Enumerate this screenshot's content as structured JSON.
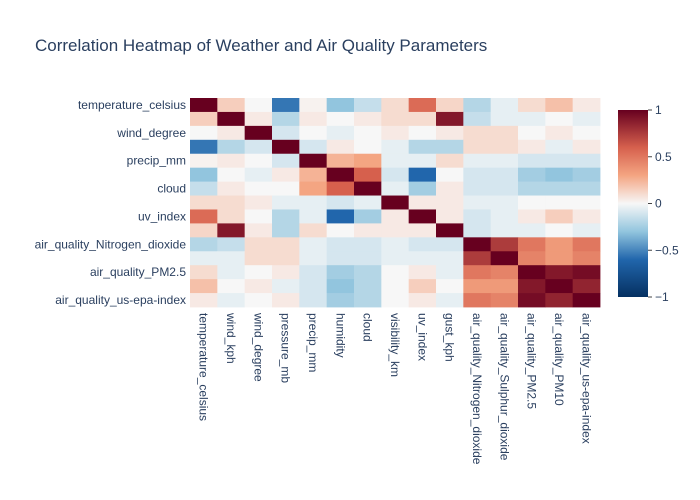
{
  "chart_data": {
    "type": "heatmap",
    "title": "Correlation Heatmap of Weather and Air Quality Parameters",
    "xlabel": "",
    "ylabel": "",
    "variables": [
      "temperature_celsius",
      "wind_kph",
      "wind_degree",
      "pressure_mb",
      "precip_mm",
      "humidity",
      "cloud",
      "visibility_km",
      "uv_index",
      "gust_kph",
      "air_quality_Nitrogen_dioxide",
      "air_quality_Sulphur_dioxide",
      "air_quality_PM2.5",
      "air_quality_PM10",
      "air_quality_us-epa-index"
    ],
    "x_tick_labels": [
      "temperature_celsius",
      "wind_kph",
      "wind_degree",
      "pressure_mb",
      "precip_mm",
      "humidity",
      "cloud",
      "visibility_km",
      "uv_index",
      "gust_kph",
      "air_quality_Nitrogen_dioxide",
      "air_quality_Sulphur_dioxide",
      "air_quality_PM2.5",
      "air_quality_PM10",
      "air_quality_us-epa-index"
    ],
    "y_tick_labels": [
      "temperature_celsius",
      "wind_degree",
      "precip_mm",
      "cloud",
      "uv_index",
      "air_quality_Nitrogen_dioxide",
      "air_quality_PM2.5",
      "air_quality_us-epa-index"
    ],
    "z": [
      [
        1.0,
        0.15,
        0.0,
        -0.55,
        0.02,
        -0.3,
        -0.15,
        0.1,
        0.55,
        0.12,
        -0.2,
        -0.05,
        0.1,
        0.2,
        0.05
      ],
      [
        0.15,
        1.0,
        0.05,
        -0.2,
        0.05,
        0.0,
        0.05,
        0.1,
        0.1,
        0.9,
        -0.15,
        -0.05,
        -0.05,
        0.0,
        -0.05
      ],
      [
        0.0,
        0.05,
        1.0,
        -0.1,
        0.0,
        -0.05,
        0.0,
        0.05,
        0.0,
        0.05,
        0.1,
        0.1,
        0.0,
        0.05,
        0.0
      ],
      [
        -0.55,
        -0.2,
        -0.1,
        1.0,
        -0.1,
        0.05,
        0.0,
        -0.05,
        -0.2,
        -0.2,
        0.1,
        0.1,
        0.05,
        -0.05,
        0.05
      ],
      [
        0.02,
        0.05,
        0.0,
        -0.1,
        1.0,
        0.25,
        0.3,
        -0.05,
        -0.05,
        0.1,
        -0.05,
        -0.05,
        -0.1,
        -0.1,
        -0.1
      ],
      [
        -0.3,
        0.0,
        -0.05,
        0.05,
        0.25,
        1.0,
        0.6,
        -0.1,
        -0.6,
        0.0,
        -0.1,
        -0.1,
        -0.25,
        -0.3,
        -0.25
      ],
      [
        -0.15,
        0.05,
        0.0,
        0.0,
        0.3,
        0.6,
        1.0,
        -0.05,
        -0.25,
        0.05,
        -0.1,
        -0.1,
        -0.2,
        -0.2,
        -0.2
      ],
      [
        0.1,
        0.1,
        0.05,
        -0.05,
        -0.05,
        -0.1,
        -0.05,
        1.0,
        0.05,
        0.05,
        -0.05,
        -0.05,
        0.0,
        0.0,
        0.0
      ],
      [
        0.55,
        0.1,
        0.0,
        -0.2,
        -0.05,
        -0.6,
        -0.25,
        0.05,
        1.0,
        0.05,
        -0.1,
        -0.05,
        0.05,
        0.15,
        0.05
      ],
      [
        0.12,
        0.9,
        0.05,
        -0.2,
        0.1,
        0.0,
        0.05,
        0.05,
        0.05,
        1.0,
        -0.1,
        -0.05,
        -0.05,
        0.0,
        -0.05
      ],
      [
        -0.2,
        -0.15,
        0.1,
        0.1,
        -0.05,
        -0.1,
        -0.1,
        -0.05,
        -0.1,
        -0.1,
        1.0,
        0.75,
        0.5,
        0.35,
        0.5
      ],
      [
        -0.05,
        -0.05,
        0.1,
        0.1,
        -0.05,
        -0.1,
        -0.1,
        -0.05,
        -0.05,
        -0.05,
        0.75,
        1.0,
        0.45,
        0.35,
        0.45
      ],
      [
        0.1,
        -0.05,
        0.0,
        0.05,
        -0.1,
        -0.25,
        -0.2,
        0.0,
        0.05,
        -0.05,
        0.5,
        0.45,
        1.0,
        0.9,
        0.95
      ],
      [
        0.2,
        0.0,
        0.05,
        -0.05,
        -0.1,
        -0.3,
        -0.2,
        0.0,
        0.15,
        0.0,
        0.35,
        0.35,
        0.9,
        1.0,
        0.85
      ],
      [
        0.05,
        -0.05,
        0.0,
        0.05,
        -0.1,
        -0.25,
        -0.2,
        0.0,
        0.05,
        -0.05,
        0.5,
        0.45,
        0.95,
        0.85,
        1.0
      ]
    ],
    "zmin": -1,
    "zmax": 1,
    "colorscale": "RdBu",
    "colorbar_ticks": [
      "1",
      "0.5",
      "0",
      "−0.5",
      "−1"
    ],
    "colorbar_tick_values": [
      1,
      0.5,
      0,
      -0.5,
      -1
    ],
    "grid": false,
    "colors": {
      "neg_strong": "#053061",
      "neg_mid": "#4393c3",
      "neutral": "#f7f7f7",
      "pos_mid": "#f4a582",
      "pos_strong": "#67001f",
      "text": "#2a3f5f"
    }
  }
}
